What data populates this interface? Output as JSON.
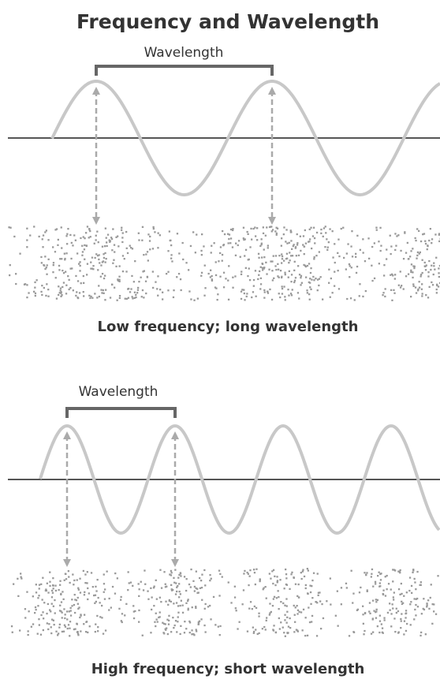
{
  "header": {
    "title": "Frequency and Wavelength"
  },
  "panels": [
    {
      "label": "Wavelength",
      "caption": "Low frequency; long wavelength"
    },
    {
      "label": "Wavelength",
      "caption": "High frequency; short wavelength"
    }
  ]
}
